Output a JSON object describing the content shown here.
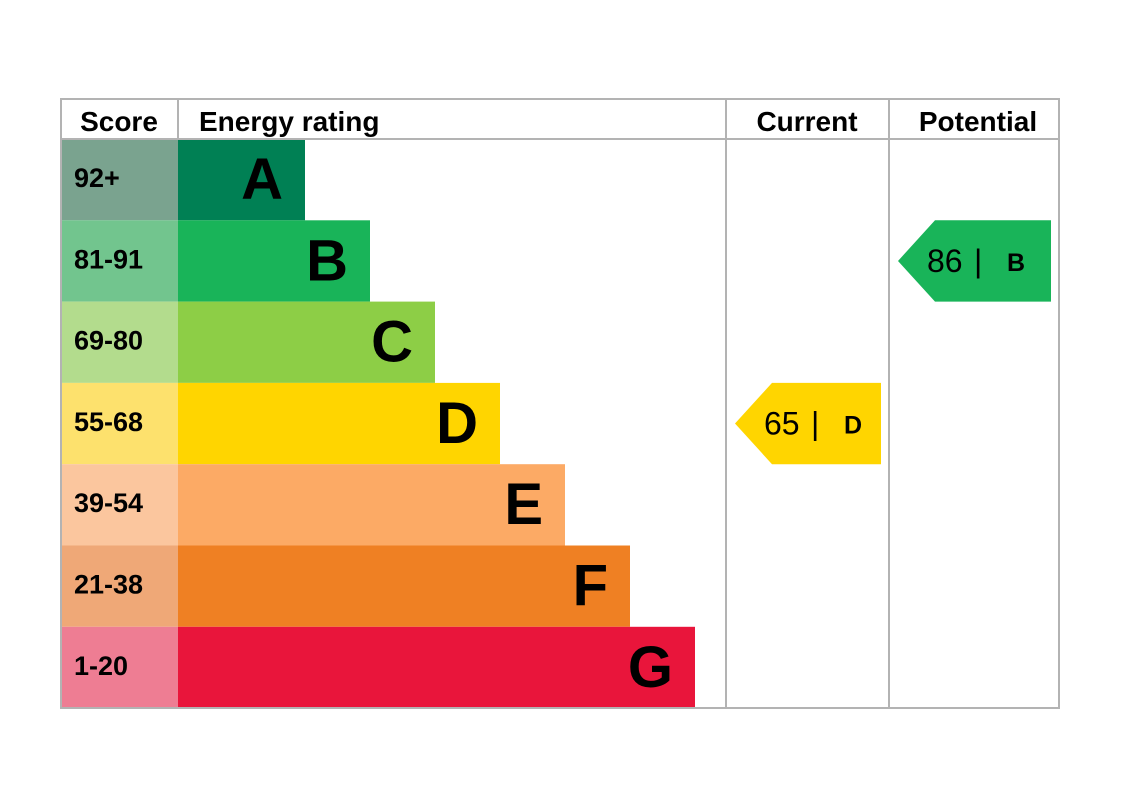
{
  "chart_data": {
    "type": "bar",
    "columns": {
      "score": "Score",
      "rating": "Energy rating",
      "current": "Current",
      "potential": "Potential"
    },
    "bands": [
      {
        "score": "92+",
        "letter": "A",
        "color": "#008054",
        "score_bg": "#7aa38f"
      },
      {
        "score": "81-91",
        "letter": "B",
        "color": "#19b459",
        "score_bg": "#72c58e"
      },
      {
        "score": "69-80",
        "letter": "C",
        "color": "#8dce46",
        "score_bg": "#b3dc8d"
      },
      {
        "score": "55-68",
        "letter": "D",
        "color": "#ffd500",
        "score_bg": "#fde16d"
      },
      {
        "score": "39-54",
        "letter": "E",
        "color": "#fcaa65",
        "score_bg": "#fbc69e"
      },
      {
        "score": "21-38",
        "letter": "F",
        "color": "#ef8023",
        "score_bg": "#efa877"
      },
      {
        "score": "1-20",
        "letter": "G",
        "color": "#e9153b",
        "score_bg": "#ee7d93"
      }
    ],
    "current": {
      "value": 65,
      "letter": "D",
      "color": "#ffd500"
    },
    "potential": {
      "value": 86,
      "letter": "B",
      "color": "#19b459"
    },
    "separator": "|"
  }
}
